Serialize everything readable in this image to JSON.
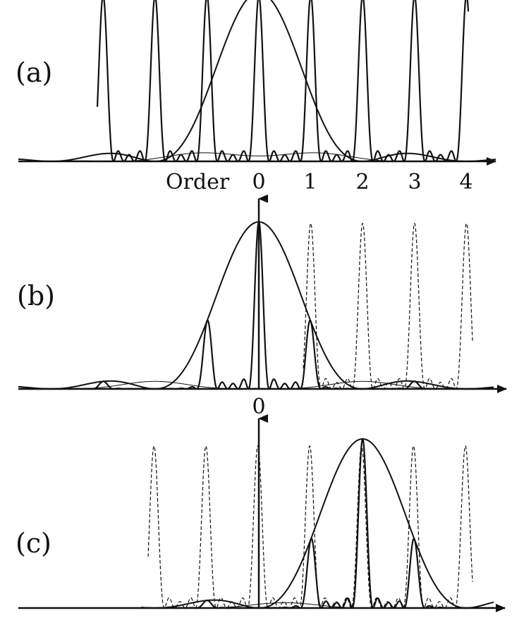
{
  "panels": [
    {
      "id": "a",
      "label": "(a)",
      "axis_word": "Order",
      "order_labels": [
        "0",
        "1",
        "2",
        "3",
        "4"
      ],
      "central_arrow": false,
      "comb_dashed": false,
      "envelope_center_order": 0
    },
    {
      "id": "b",
      "label": "(b)",
      "order_labels": [
        "0"
      ],
      "central_arrow": true,
      "comb_dashed": true,
      "envelope_center_order": 0
    },
    {
      "id": "c",
      "label": "(c)",
      "order_labels": [],
      "central_arrow": true,
      "comb_dashed": true,
      "envelope_center_order": 2
    }
  ]
}
